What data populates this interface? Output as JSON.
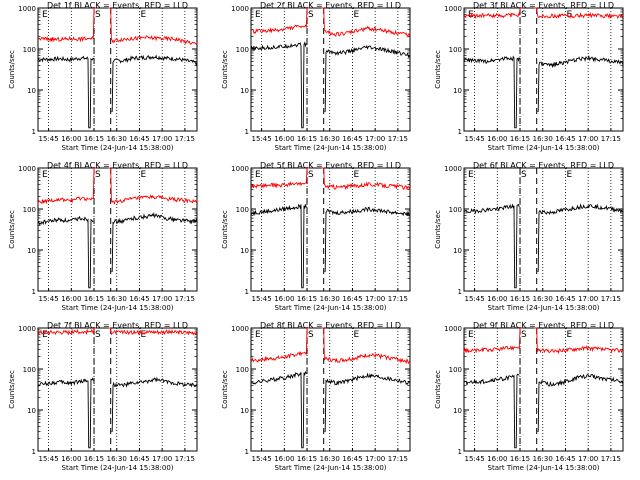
{
  "charts_common": {
    "xlabel": "Start Time (24-Jun-14 15:38:00)",
    "ylabel": "Counts/sec",
    "x_ticks": [
      "15:45",
      "16:00",
      "16:15",
      "16:30",
      "16:45",
      "17:00",
      "17:15"
    ],
    "y_ticks": [
      "1",
      "10",
      "100",
      "1000"
    ],
    "markers": [
      "E",
      "S",
      "E"
    ]
  },
  "colors": {
    "events": "#000000",
    "lld": "#ff0000"
  },
  "chart_data": [
    {
      "type": "line",
      "title": "Det 1f BLACK = Events, RED = LLD",
      "x_range_min": [
        0,
        105
      ],
      "ylim": [
        1,
        1000
      ],
      "y_scale": "log",
      "series": [
        {
          "name": "Events",
          "base": [
            56,
            56,
            58,
            55,
            60,
            58,
            57,
            52,
            52,
            60,
            62,
            65,
            60,
            58,
            52,
            45
          ]
        },
        {
          "name": "LLD",
          "base": [
            180,
            175,
            170,
            178,
            176,
            182,
            178,
            160,
            175,
            180,
            190,
            185,
            180,
            175,
            150,
            130
          ]
        }
      ]
    },
    {
      "type": "line",
      "title": "Det 2f BLACK = Events, RED = LLD",
      "x_range_min": [
        0,
        105
      ],
      "ylim": [
        1,
        1000
      ],
      "y_scale": "log",
      "series": [
        {
          "name": "Events",
          "base": [
            100,
            105,
            110,
            115,
            125,
            130,
            115,
            90,
            80,
            85,
            95,
            110,
            100,
            90,
            80,
            70
          ]
        },
        {
          "name": "LLD",
          "base": [
            270,
            275,
            280,
            300,
            340,
            360,
            320,
            260,
            230,
            240,
            280,
            320,
            300,
            270,
            240,
            220
          ]
        }
      ]
    },
    {
      "type": "line",
      "title": "Det 3f BLACK = Events, RED = LLD",
      "x_range_min": [
        0,
        105
      ],
      "ylim": [
        1,
        1000
      ],
      "y_scale": "log",
      "series": [
        {
          "name": "Events",
          "base": [
            55,
            52,
            50,
            55,
            60,
            58,
            52,
            45,
            40,
            45,
            50,
            58,
            60,
            55,
            50,
            45
          ]
        },
        {
          "name": "LLD",
          "base": [
            650,
            650,
            660,
            660,
            670,
            670,
            660,
            640,
            640,
            650,
            650,
            660,
            660,
            650,
            640,
            630
          ]
        }
      ]
    },
    {
      "type": "line",
      "title": "Det 4f BLACK = Events, RED = LLD",
      "x_range_min": [
        0,
        105
      ],
      "ylim": [
        1,
        1000
      ],
      "y_scale": "log",
      "series": [
        {
          "name": "Events",
          "base": [
            45,
            50,
            55,
            50,
            60,
            55,
            55,
            50,
            50,
            60,
            65,
            70,
            60,
            55,
            52,
            50
          ]
        },
        {
          "name": "LLD",
          "base": [
            150,
            160,
            170,
            160,
            180,
            175,
            170,
            150,
            160,
            180,
            190,
            200,
            180,
            170,
            160,
            150
          ]
        }
      ]
    },
    {
      "type": "line",
      "title": "Det 5f BLACK = Events, RED = LLD",
      "x_range_min": [
        0,
        105
      ],
      "ylim": [
        1,
        1000
      ],
      "y_scale": "log",
      "series": [
        {
          "name": "Events",
          "base": [
            80,
            85,
            90,
            100,
            110,
            120,
            105,
            90,
            80,
            85,
            90,
            100,
            95,
            85,
            80,
            75
          ]
        },
        {
          "name": "LLD",
          "base": [
            360,
            370,
            380,
            390,
            400,
            420,
            400,
            360,
            340,
            350,
            370,
            400,
            390,
            370,
            350,
            320
          ]
        }
      ]
    },
    {
      "type": "line",
      "title": "Det 6f BLACK = Events, RED = LLD",
      "x_range_min": [
        0,
        105
      ],
      "ylim": [
        1,
        1000
      ],
      "y_scale": "log",
      "series": [
        {
          "name": "Events",
          "base": [
            85,
            90,
            95,
            100,
            110,
            120,
            105,
            90,
            80,
            90,
            100,
            115,
            120,
            110,
            100,
            90
          ]
        }
      ]
    },
    {
      "type": "line",
      "title": "Det 7f BLACK = Events, RED = LLD",
      "x_range_min": [
        0,
        105
      ],
      "ylim": [
        1,
        1000
      ],
      "y_scale": "log",
      "series": [
        {
          "name": "Events",
          "base": [
            42,
            45,
            48,
            45,
            50,
            55,
            50,
            42,
            40,
            45,
            48,
            55,
            50,
            45,
            42,
            40
          ]
        },
        {
          "name": "LLD",
          "base": [
            780,
            790,
            800,
            790,
            810,
            820,
            810,
            790,
            780,
            790,
            800,
            810,
            800,
            790,
            780,
            780
          ]
        }
      ]
    },
    {
      "type": "line",
      "title": "Det 8f BLACK = Events, RED = LLD",
      "x_range_min": [
        0,
        105
      ],
      "ylim": [
        1,
        1000
      ],
      "y_scale": "log",
      "series": [
        {
          "name": "Events",
          "base": [
            45,
            50,
            55,
            60,
            70,
            80,
            70,
            55,
            45,
            50,
            60,
            70,
            65,
            58,
            52,
            45
          ]
        },
        {
          "name": "LLD",
          "base": [
            160,
            170,
            180,
            190,
            220,
            250,
            220,
            180,
            160,
            170,
            190,
            220,
            210,
            190,
            170,
            150
          ]
        }
      ]
    },
    {
      "type": "line",
      "title": "Det 9f BLACK = Events, RED = LLD",
      "x_range_min": [
        0,
        105
      ],
      "ylim": [
        1,
        1000
      ],
      "y_scale": "log",
      "series": [
        {
          "name": "Events",
          "base": [
            45,
            48,
            50,
            55,
            60,
            70,
            62,
            50,
            42,
            45,
            52,
            65,
            68,
            60,
            55,
            50
          ]
        },
        {
          "name": "LLD",
          "base": [
            280,
            285,
            290,
            300,
            320,
            340,
            320,
            290,
            270,
            280,
            300,
            320,
            320,
            300,
            290,
            280
          ]
        }
      ]
    }
  ]
}
